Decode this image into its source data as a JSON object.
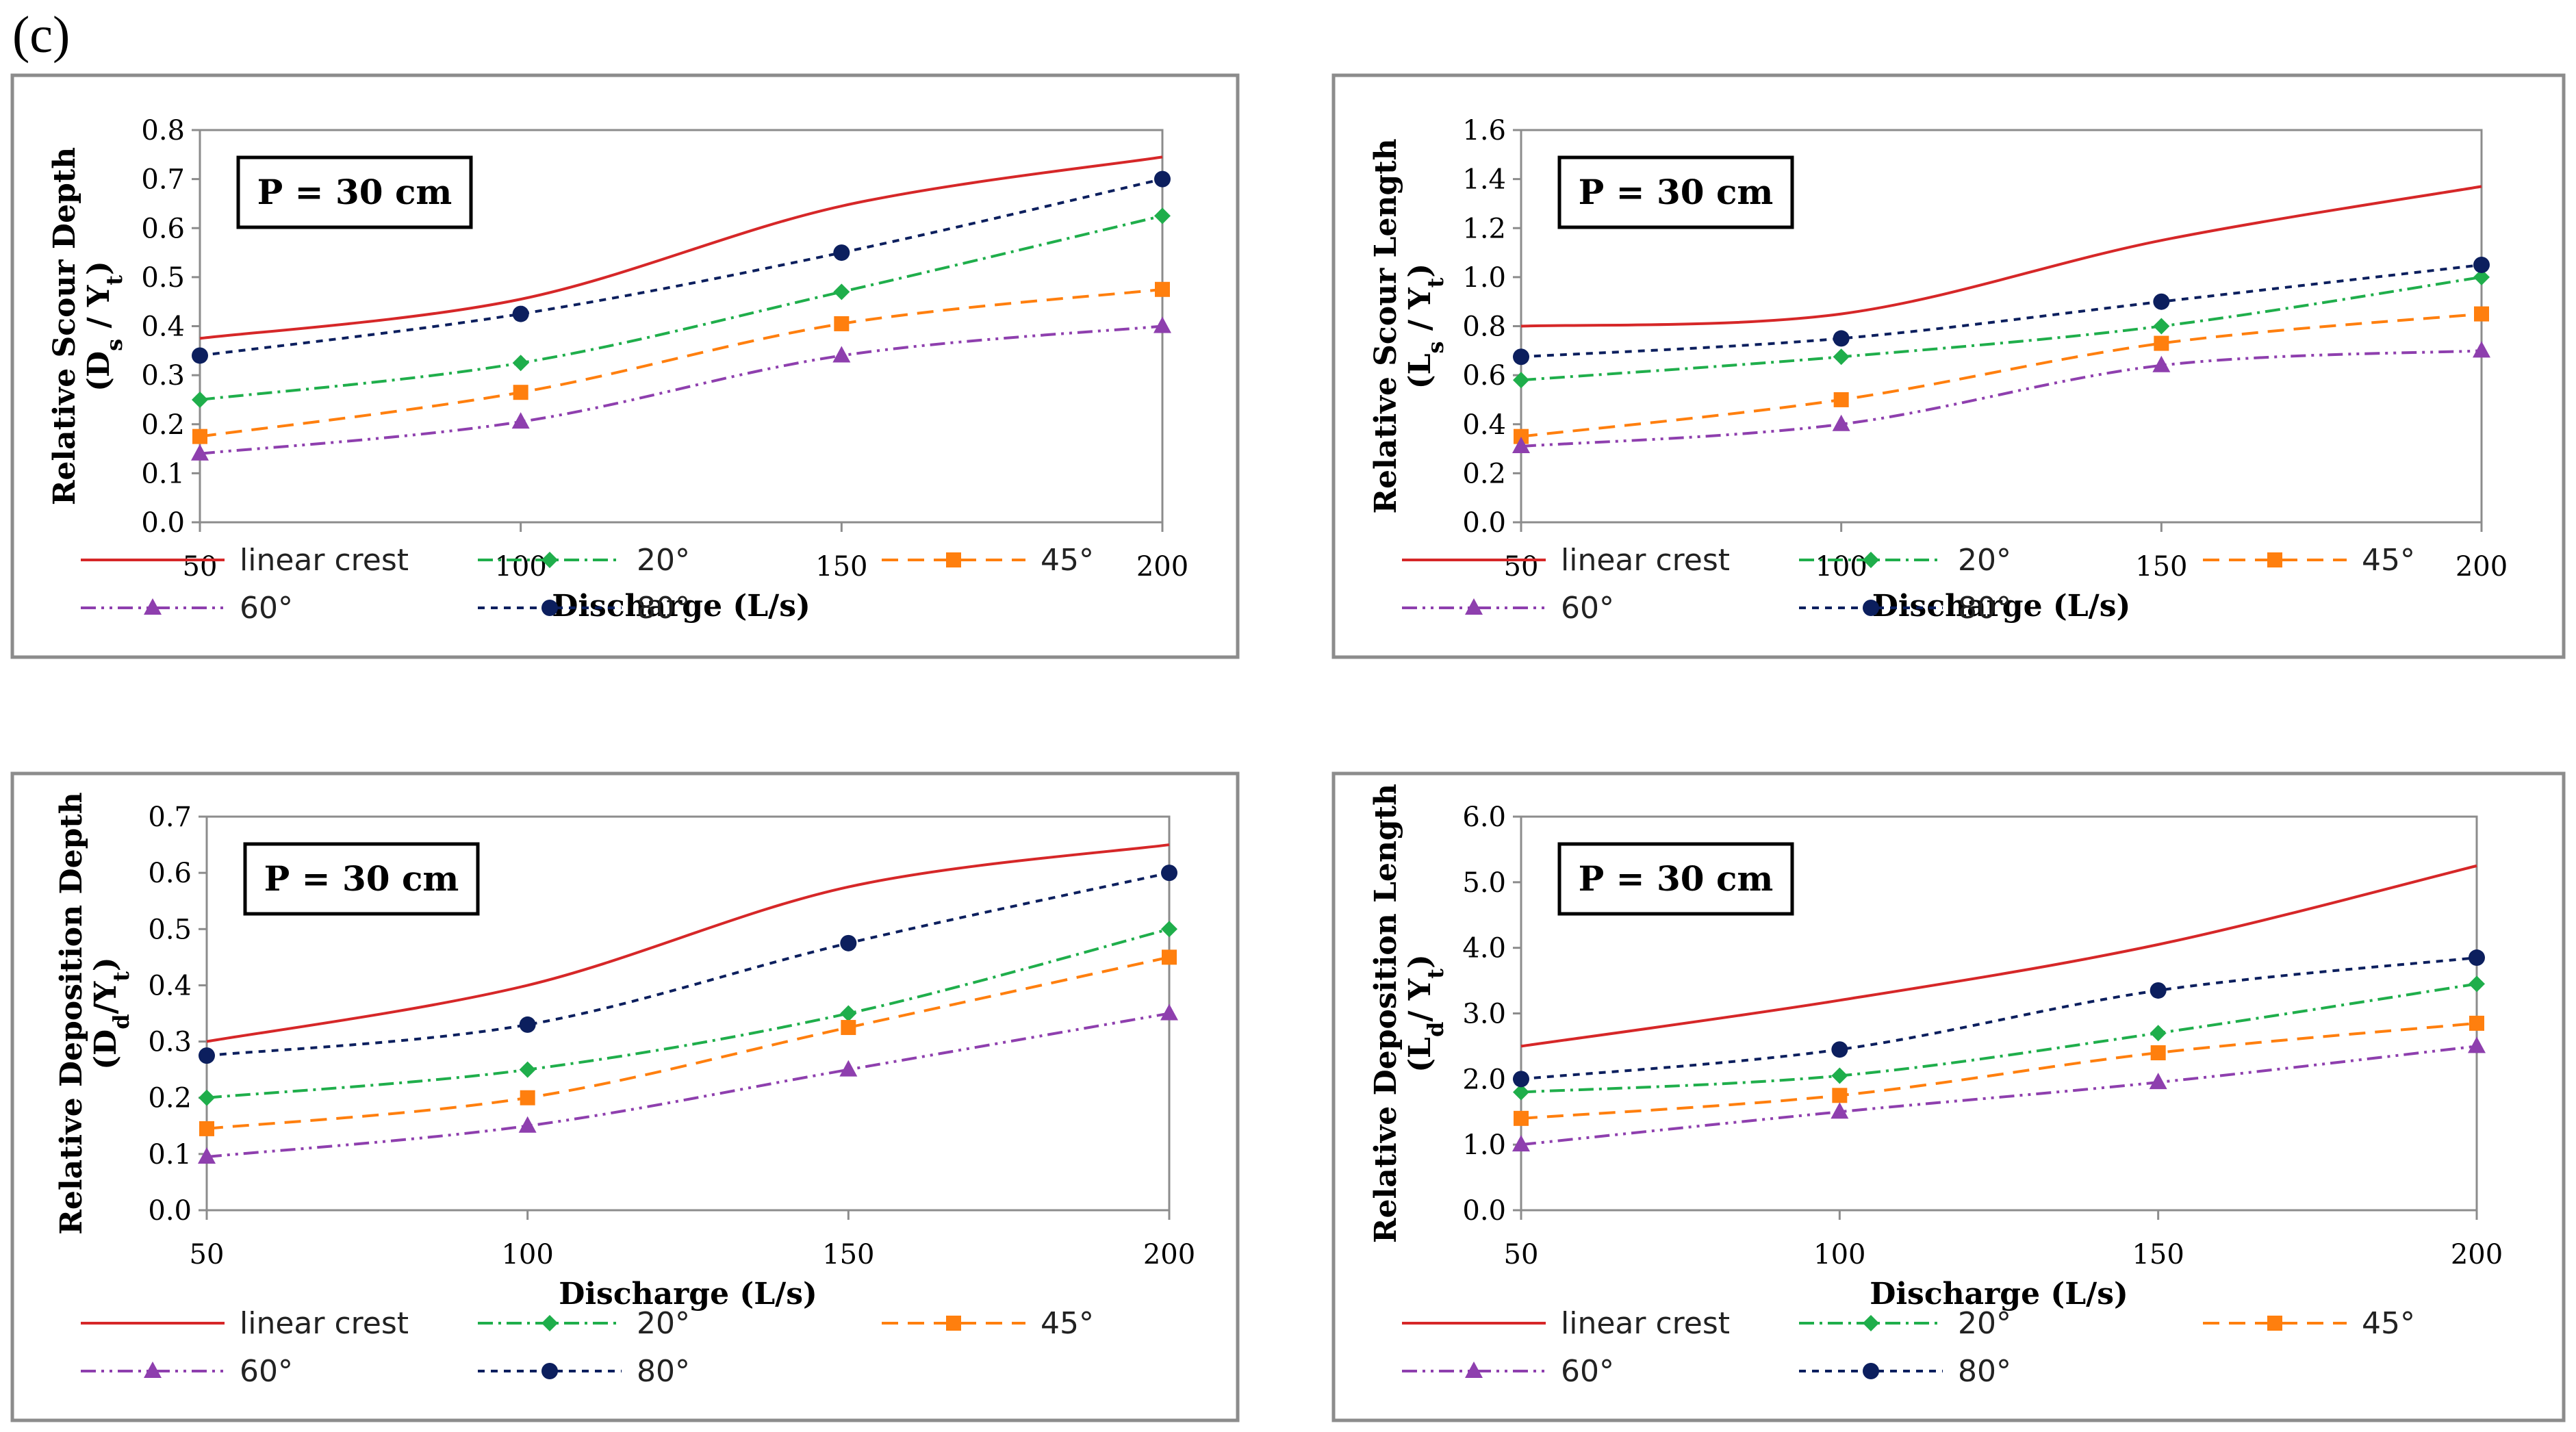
{
  "figure_label": "(c)",
  "colors": {
    "linear": "#d62728",
    "deg20": "#1fae4b",
    "deg45": "#ff7f0e",
    "deg60": "#8e3fae",
    "deg80": "#0c1f5e",
    "frame": "#8c8c8c",
    "axis": "#8c8c8c"
  },
  "chart_data": [
    {
      "type": "line",
      "annotation": "P = 30 cm",
      "xlabel": "Discharge (L/s)",
      "ylabel": "Relative Scour Depth",
      "ylabel_symbol": "(D",
      "ylabel_sub1": "s",
      "ylabel_mid": " / Y",
      "ylabel_sub2": "t",
      "ylabel_end": ")",
      "x": [
        50,
        100,
        150,
        200
      ],
      "xlim": [
        50,
        200
      ],
      "ylim": [
        0,
        0.8
      ],
      "yticks": [
        "0.0",
        "0.1",
        "0.2",
        "0.3",
        "0.4",
        "0.5",
        "0.6",
        "0.7",
        "0.8"
      ],
      "xticks": [
        "50",
        "100",
        "150",
        "200"
      ],
      "series": [
        {
          "name": "linear crest",
          "values": [
            0.375,
            0.455,
            0.645,
            0.745
          ]
        },
        {
          "name": "20°",
          "values": [
            0.25,
            0.325,
            0.47,
            0.625
          ]
        },
        {
          "name": "45°",
          "values": [
            0.175,
            0.265,
            0.405,
            0.475
          ]
        },
        {
          "name": "60°",
          "values": [
            0.14,
            0.205,
            0.34,
            0.4
          ]
        },
        {
          "name": "80°",
          "values": [
            0.34,
            0.425,
            0.55,
            0.7
          ]
        }
      ]
    },
    {
      "type": "line",
      "annotation": "P = 30 cm",
      "xlabel": "Discharge (L/s)",
      "ylabel": "Relative Scour Length",
      "ylabel_symbol": "(L",
      "ylabel_sub1": "s",
      "ylabel_mid": " / Y",
      "ylabel_sub2": "t",
      "ylabel_end": ")",
      "x": [
        50,
        100,
        150,
        200
      ],
      "xlim": [
        50,
        200
      ],
      "ylim": [
        0,
        1.6
      ],
      "yticks": [
        "0.0",
        "0.2",
        "0.4",
        "0.6",
        "0.8",
        "1.0",
        "1.2",
        "1.4",
        "1.6"
      ],
      "xticks": [
        "50",
        "100",
        "150",
        "200"
      ],
      "series": [
        {
          "name": "linear crest",
          "values": [
            0.8,
            0.85,
            1.15,
            1.37
          ]
        },
        {
          "name": "20°",
          "values": [
            0.58,
            0.675,
            0.8,
            1.0
          ]
        },
        {
          "name": "45°",
          "values": [
            0.35,
            0.5,
            0.73,
            0.85
          ]
        },
        {
          "name": "60°",
          "values": [
            0.31,
            0.4,
            0.64,
            0.7
          ]
        },
        {
          "name": "80°",
          "values": [
            0.675,
            0.75,
            0.9,
            1.05
          ]
        }
      ]
    },
    {
      "type": "line",
      "annotation": "P = 30 cm",
      "xlabel": "Discharge (L/s)",
      "ylabel": "Relative Deposition Depth",
      "ylabel_symbol": "(D",
      "ylabel_sub1": "d",
      "ylabel_mid": "/Y",
      "ylabel_sub2": "t",
      "ylabel_end": ")",
      "x": [
        50,
        100,
        150,
        200
      ],
      "xlim": [
        50,
        200
      ],
      "ylim": [
        0,
        0.7
      ],
      "yticks": [
        "0.0",
        "0.1",
        "0.2",
        "0.3",
        "0.4",
        "0.5",
        "0.6",
        "0.7"
      ],
      "xticks": [
        "50",
        "100",
        "150",
        "200"
      ],
      "series": [
        {
          "name": "linear crest",
          "values": [
            0.3,
            0.4,
            0.575,
            0.65
          ]
        },
        {
          "name": "20°",
          "values": [
            0.2,
            0.25,
            0.35,
            0.5
          ]
        },
        {
          "name": "45°",
          "values": [
            0.145,
            0.2,
            0.325,
            0.45
          ]
        },
        {
          "name": "60°",
          "values": [
            0.095,
            0.15,
            0.25,
            0.35
          ]
        },
        {
          "name": "80°",
          "values": [
            0.275,
            0.33,
            0.475,
            0.6
          ]
        }
      ]
    },
    {
      "type": "line",
      "annotation": "P = 30 cm",
      "xlabel": "Discharge (L/s)",
      "ylabel": "Relative Deposition Length",
      "ylabel_symbol": "(L",
      "ylabel_sub1": "d",
      "ylabel_mid": "/ Y",
      "ylabel_sub2": "t",
      "ylabel_end": ")",
      "x": [
        50,
        100,
        150,
        200
      ],
      "xlim": [
        50,
        200
      ],
      "ylim": [
        0,
        6.0
      ],
      "yticks": [
        "0.0",
        "1.0",
        "2.0",
        "3.0",
        "4.0",
        "5.0",
        "6.0"
      ],
      "xticks": [
        "50",
        "100",
        "150",
        "200"
      ],
      "series": [
        {
          "name": "linear crest",
          "values": [
            2.5,
            3.2,
            4.05,
            5.25
          ]
        },
        {
          "name": "20°",
          "values": [
            1.8,
            2.05,
            2.7,
            3.45
          ]
        },
        {
          "name": "45°",
          "values": [
            1.4,
            1.75,
            2.4,
            2.85
          ]
        },
        {
          "name": "60°",
          "values": [
            1.0,
            1.5,
            1.95,
            2.5
          ]
        },
        {
          "name": "80°",
          "values": [
            2.0,
            2.45,
            3.35,
            3.85
          ]
        }
      ]
    }
  ]
}
